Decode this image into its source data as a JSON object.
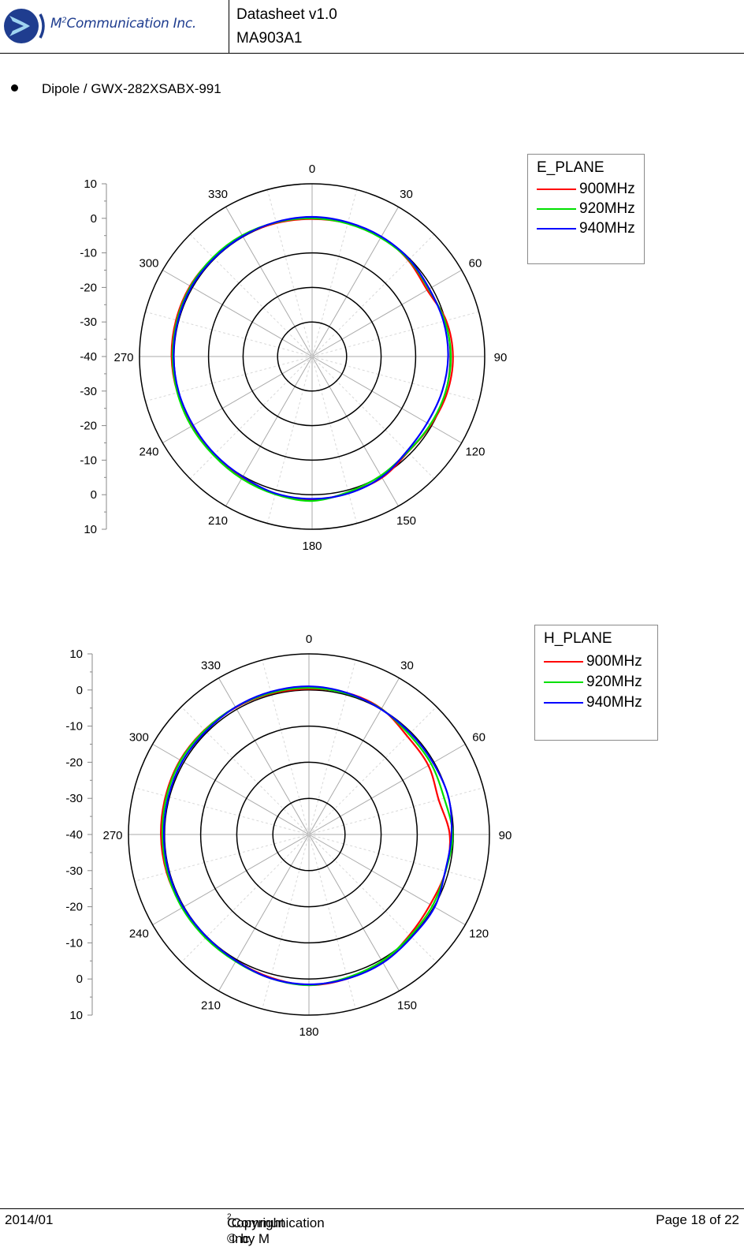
{
  "header": {
    "company": "M²Communication Inc.",
    "company_main": "M",
    "company_sup": "2",
    "company_rest": "Communication Inc.",
    "doc_title": "Datasheet v1.0",
    "model": "MA903A1"
  },
  "section": {
    "bullet_label": "Dipole / GWX-282XSABX-991"
  },
  "footer": {
    "date": "2014/01",
    "copyright_prefix": "Copyright © by M",
    "copyright_sup": "2",
    "copyright_suffix": "Communication Inc.",
    "page": "Page 18 of 22"
  },
  "colors": {
    "900MHz": "#ff0000",
    "920MHz": "#00e000",
    "940MHz": "#0000ff",
    "grid_ring": "#000000",
    "grid_spoke": "#b0b0b0"
  },
  "chart_data": [
    {
      "type": "polar",
      "title": "E_PLANE",
      "angle_ticks": [
        "0",
        "30",
        "60",
        "90",
        "120",
        "150",
        "180",
        "210",
        "240",
        "270",
        "300",
        "330"
      ],
      "radial_ticks": [
        "10",
        "0",
        "-10",
        "-20",
        "-30",
        "-40",
        "-30",
        "-20",
        "-10",
        "0",
        "10"
      ],
      "rlim": [
        -40,
        10
      ],
      "ring_values": [
        -30,
        -20,
        -10,
        0,
        10
      ],
      "grid": true,
      "legend_position": "top-right",
      "angles_deg": [
        0,
        15,
        30,
        45,
        60,
        75,
        90,
        105,
        120,
        135,
        150,
        165,
        180,
        195,
        210,
        225,
        240,
        255,
        270,
        285,
        300,
        315,
        330,
        345
      ],
      "series": [
        {
          "name": "900MHz",
          "values": [
            -0.2,
            -0.1,
            0.0,
            -0.6,
            -1.5,
            0.2,
            0.8,
            0.5,
            -0.3,
            -0.8,
            0.5,
            0.8,
            1.6,
            1.2,
            0.5,
            0.0,
            0.0,
            0.4,
            0.7,
            0.8,
            0.8,
            0.5,
            0.3,
            0.0
          ]
        },
        {
          "name": "920MHz",
          "values": [
            0.0,
            -0.2,
            -0.3,
            -0.4,
            -1.0,
            -0.2,
            0.2,
            0.0,
            -0.5,
            -0.9,
            -0.2,
            0.6,
            1.8,
            1.3,
            0.8,
            0.4,
            0.4,
            0.4,
            0.4,
            0.5,
            0.6,
            0.6,
            0.5,
            0.2
          ]
        },
        {
          "name": "940MHz",
          "values": [
            0.4,
            0.2,
            0.1,
            -0.2,
            -0.8,
            -0.6,
            -0.6,
            -1.0,
            -1.5,
            -1.2,
            0.3,
            1.0,
            1.2,
            1.0,
            0.2,
            -0.1,
            -0.2,
            0.0,
            0.1,
            0.2,
            0.3,
            0.2,
            0.2,
            0.3
          ]
        }
      ]
    },
    {
      "type": "polar",
      "title": "H_PLANE",
      "angle_ticks": [
        "0",
        "30",
        "60",
        "90",
        "120",
        "150",
        "180",
        "210",
        "240",
        "270",
        "300",
        "330"
      ],
      "radial_ticks": [
        "10",
        "0",
        "-10",
        "-20",
        "-30",
        "-40",
        "-30",
        "-20",
        "-10",
        "0",
        "10"
      ],
      "rlim": [
        -40,
        10
      ],
      "ring_values": [
        -30,
        -20,
        -10,
        0,
        10
      ],
      "grid": true,
      "legend_position": "top-right",
      "angles_deg": [
        0,
        15,
        30,
        45,
        60,
        75,
        90,
        105,
        120,
        135,
        150,
        165,
        180,
        195,
        210,
        225,
        240,
        255,
        270,
        285,
        300,
        315,
        330,
        345
      ],
      "series": [
        {
          "name": "900MHz",
          "values": [
            0.3,
            0.6,
            0.2,
            -1.5,
            -1.8,
            -2.8,
            -1.0,
            -0.8,
            -1.2,
            -0.6,
            0.8,
            1.3,
            1.7,
            1.0,
            0.4,
            0.2,
            0.4,
            0.8,
            1.0,
            1.1,
            1.2,
            0.9,
            0.6,
            0.4
          ]
        },
        {
          "name": "920MHz",
          "values": [
            0.6,
            0.4,
            0.1,
            -0.8,
            -0.9,
            -1.2,
            -0.2,
            -0.8,
            -0.5,
            -0.3,
            0.5,
            1.0,
            1.7,
            1.2,
            0.6,
            0.5,
            0.6,
            0.6,
            0.6,
            0.8,
            1.0,
            0.8,
            0.7,
            0.6
          ]
        },
        {
          "name": "940MHz",
          "values": [
            1.0,
            0.6,
            0.0,
            -0.3,
            -0.3,
            0.0,
            -0.5,
            -0.9,
            0.2,
            0.2,
            1.0,
            1.3,
            1.5,
            1.2,
            0.4,
            0.1,
            0.2,
            0.2,
            0.2,
            0.3,
            0.5,
            0.4,
            0.7,
            0.9
          ]
        }
      ]
    }
  ]
}
